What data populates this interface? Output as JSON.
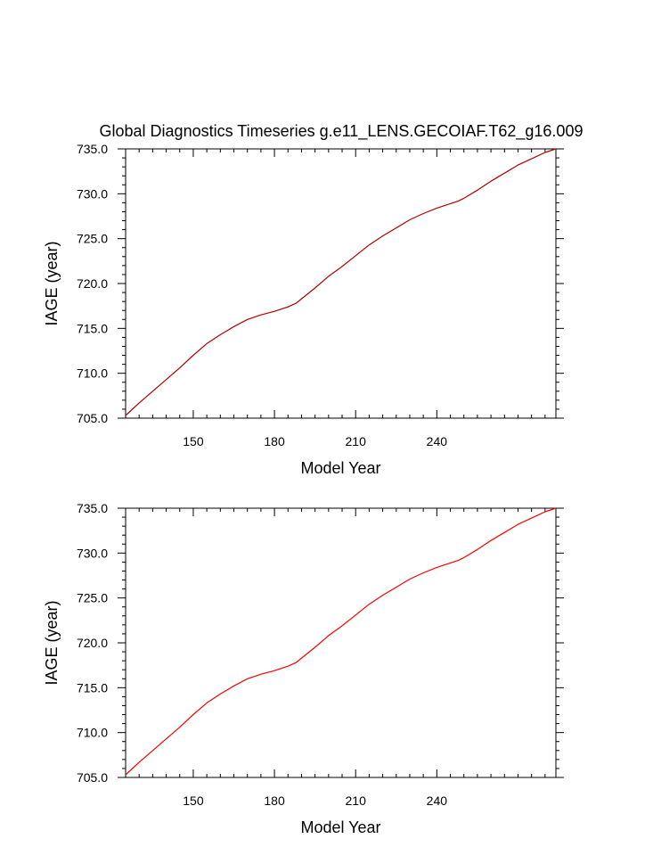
{
  "figure_title": "Global Diagnostics Timeseries g.e11_LENS.GECOIAF.T62_g16.009",
  "chart_data": [
    {
      "type": "line",
      "xlabel": "Model Year",
      "ylabel": "IAGE (year)",
      "xlim": [
        125,
        284
      ],
      "ylim": [
        705.0,
        735.0
      ],
      "xticks": [
        150,
        180,
        210,
        240
      ],
      "yticks": [
        705.0,
        710.0,
        715.0,
        720.0,
        725.0,
        730.0,
        735.0
      ],
      "series": [
        {
          "color": "#b00000",
          "x": [
            125,
            130,
            135,
            140,
            145,
            150,
            155,
            160,
            165,
            170,
            175,
            180,
            185,
            188,
            190,
            195,
            200,
            205,
            210,
            215,
            220,
            225,
            230,
            235,
            240,
            245,
            248,
            250,
            255,
            260,
            265,
            270,
            275,
            280,
            284
          ],
          "y": [
            705.3,
            706.7,
            708.0,
            709.3,
            710.6,
            712.0,
            713.3,
            714.3,
            715.2,
            716.0,
            716.5,
            716.9,
            717.4,
            717.8,
            718.3,
            719.5,
            720.8,
            721.9,
            723.1,
            724.3,
            725.3,
            726.2,
            727.1,
            727.8,
            728.4,
            728.9,
            729.2,
            729.5,
            730.4,
            731.4,
            732.3,
            733.2,
            733.9,
            734.6,
            735.0
          ]
        }
      ]
    },
    {
      "type": "line",
      "xlabel": "Model Year",
      "ylabel": "IAGE (year)",
      "xlim": [
        125,
        284
      ],
      "ylim": [
        705.0,
        735.0
      ],
      "xticks": [
        150,
        180,
        210,
        240
      ],
      "yticks": [
        705.0,
        710.0,
        715.0,
        720.0,
        725.0,
        730.0,
        735.0
      ],
      "series": [
        {
          "color": "#ff0000",
          "x": [
            125,
            130,
            135,
            140,
            145,
            150,
            155,
            160,
            165,
            170,
            175,
            180,
            185,
            188,
            190,
            195,
            200,
            205,
            210,
            215,
            220,
            225,
            230,
            235,
            240,
            245,
            248,
            250,
            255,
            260,
            265,
            270,
            275,
            280,
            284
          ],
          "y": [
            705.3,
            706.7,
            708.0,
            709.3,
            710.6,
            712.0,
            713.3,
            714.3,
            715.2,
            716.0,
            716.5,
            716.9,
            717.4,
            717.8,
            718.3,
            719.5,
            720.8,
            721.9,
            723.1,
            724.3,
            725.3,
            726.2,
            727.1,
            727.8,
            728.4,
            728.9,
            729.2,
            729.5,
            730.4,
            731.4,
            732.3,
            733.2,
            733.9,
            734.6,
            735.0
          ]
        }
      ]
    }
  ]
}
